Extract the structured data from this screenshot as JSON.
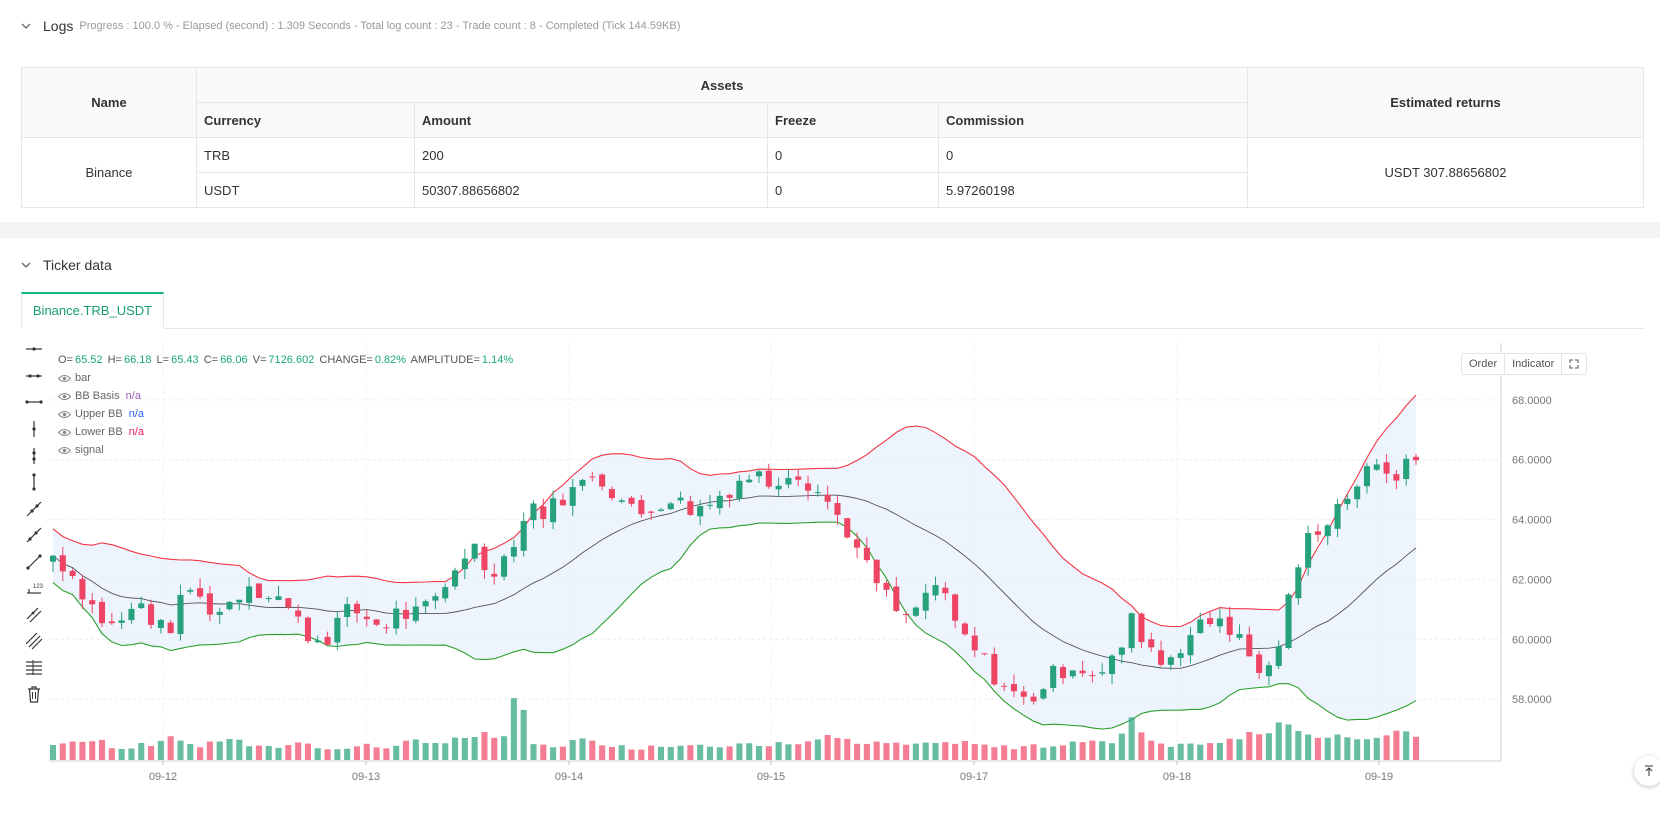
{
  "logs": {
    "title": "Logs",
    "summary": "Progress : 100.0 % - Elapsed (second) : 1.309  Seconds - Total log count : 23 - Trade count : 8 - Completed (Tick 144.59KB)"
  },
  "assets_table": {
    "name_header": "Name",
    "assets_header": "Assets",
    "returns_header": "Estimated returns",
    "columns": [
      "Currency",
      "Amount",
      "Freeze",
      "Commission"
    ],
    "exchange": "Binance",
    "rows": [
      [
        "TRB",
        "200",
        "0",
        "0"
      ],
      [
        "USDT",
        "50307.88656802",
        "0",
        "5.97260198"
      ]
    ],
    "returns": "USDT 307.88656802"
  },
  "ticker": {
    "title": "Ticker data",
    "tab": "Binance.TRB_USDT"
  },
  "legend": {
    "o_label": "O=",
    "o": "65.52",
    "h_label": "H=",
    "h": "66.18",
    "l_label": "L=",
    "l": "65.43",
    "c_label": "C=",
    "c": "66.06",
    "v_label": "V=",
    "v": "7126.602",
    "change_label": "CHANGE=",
    "change": "0.82%",
    "amp_label": "AMPLITUDE=",
    "amp": "1.14%",
    "series": [
      {
        "name": "bar",
        "value": ""
      },
      {
        "name": "BB Basis",
        "value": "n/a",
        "color": "#9b59b6"
      },
      {
        "name": "Upper BB",
        "value": "n/a",
        "color": "#2962ff"
      },
      {
        "name": "Lower BB",
        "value": "n/a",
        "color": "#e91e63"
      },
      {
        "name": "signal",
        "value": ""
      }
    ]
  },
  "chart_buttons": {
    "order": "Order",
    "indicator": "Indicator"
  },
  "chart_data": {
    "type": "candlestick",
    "y_ticks": [
      "68.0000",
      "66.0000",
      "64.0000",
      "62.0000",
      "60.0000",
      "58.0000"
    ],
    "y_tick_values": [
      68,
      66,
      64,
      62,
      60,
      58
    ],
    "ylim": [
      56.0,
      69.9
    ],
    "x_ticks": [
      "09-12",
      "09-13",
      "09-14",
      "09-15",
      "09-17",
      "09-18",
      "09-19"
    ],
    "colors": {
      "up": "#26a17b",
      "down": "#ef4565",
      "upper": "#f23645",
      "lower": "#2ca02c",
      "basis": "#555555",
      "band_fill": "#e8f1fd"
    },
    "close_path": [
      62.8,
      62.4,
      61.6,
      60.8,
      60.4,
      60.8,
      61.2,
      60.3,
      60.5,
      61.8,
      61.2,
      60.9,
      61.3,
      61.9,
      61.6,
      61.5,
      60.8,
      60.2,
      59.9,
      60.6,
      61.0,
      60.7,
      60.4,
      60.9,
      60.8,
      61.0,
      61.5,
      62.6,
      63.2,
      62.3,
      62.6,
      63.6,
      64.5,
      64.2,
      64.8,
      65.0,
      65.6,
      65.2,
      64.6,
      64.1,
      64.4,
      64.8,
      64.5,
      64.3,
      64.6,
      65.0,
      65.4,
      65.5,
      65.2,
      65.7,
      65.5,
      65.0,
      64.4,
      63.7,
      62.6,
      61.9,
      61.1,
      60.6,
      61.3,
      61.9,
      60.7,
      59.9,
      59.4,
      58.7,
      58.2,
      57.9,
      58.4,
      58.9,
      59.2,
      59.0,
      58.8,
      59.4,
      60.6,
      60.0,
      59.2,
      59.7,
      60.2,
      60.5,
      60.8,
      60.1,
      59.3,
      58.7,
      60.2,
      62.3,
      63.6,
      64.0,
      64.6,
      65.2,
      65.6,
      65.7,
      65.5,
      66.1
    ],
    "volume_path": [
      8,
      11,
      9,
      12,
      7,
      6,
      10,
      8,
      15,
      9,
      7,
      11,
      13,
      8,
      6,
      7,
      9,
      10,
      6,
      5,
      7,
      8,
      6,
      9,
      11,
      8,
      10,
      14,
      12,
      16,
      10,
      45,
      9,
      7,
      8,
      12,
      10,
      9,
      7,
      6,
      8,
      7,
      9,
      10,
      8,
      6,
      9,
      7,
      8,
      10,
      9,
      12,
      14,
      11,
      8,
      9,
      10,
      7,
      8,
      11,
      9,
      10,
      8,
      7,
      6,
      9,
      8,
      7,
      10,
      9,
      11,
      10,
      26,
      13,
      9,
      8,
      9,
      10,
      11,
      12,
      18,
      14,
      24,
      16,
      15,
      12,
      14,
      13,
      11,
      14,
      18,
      14
    ]
  }
}
